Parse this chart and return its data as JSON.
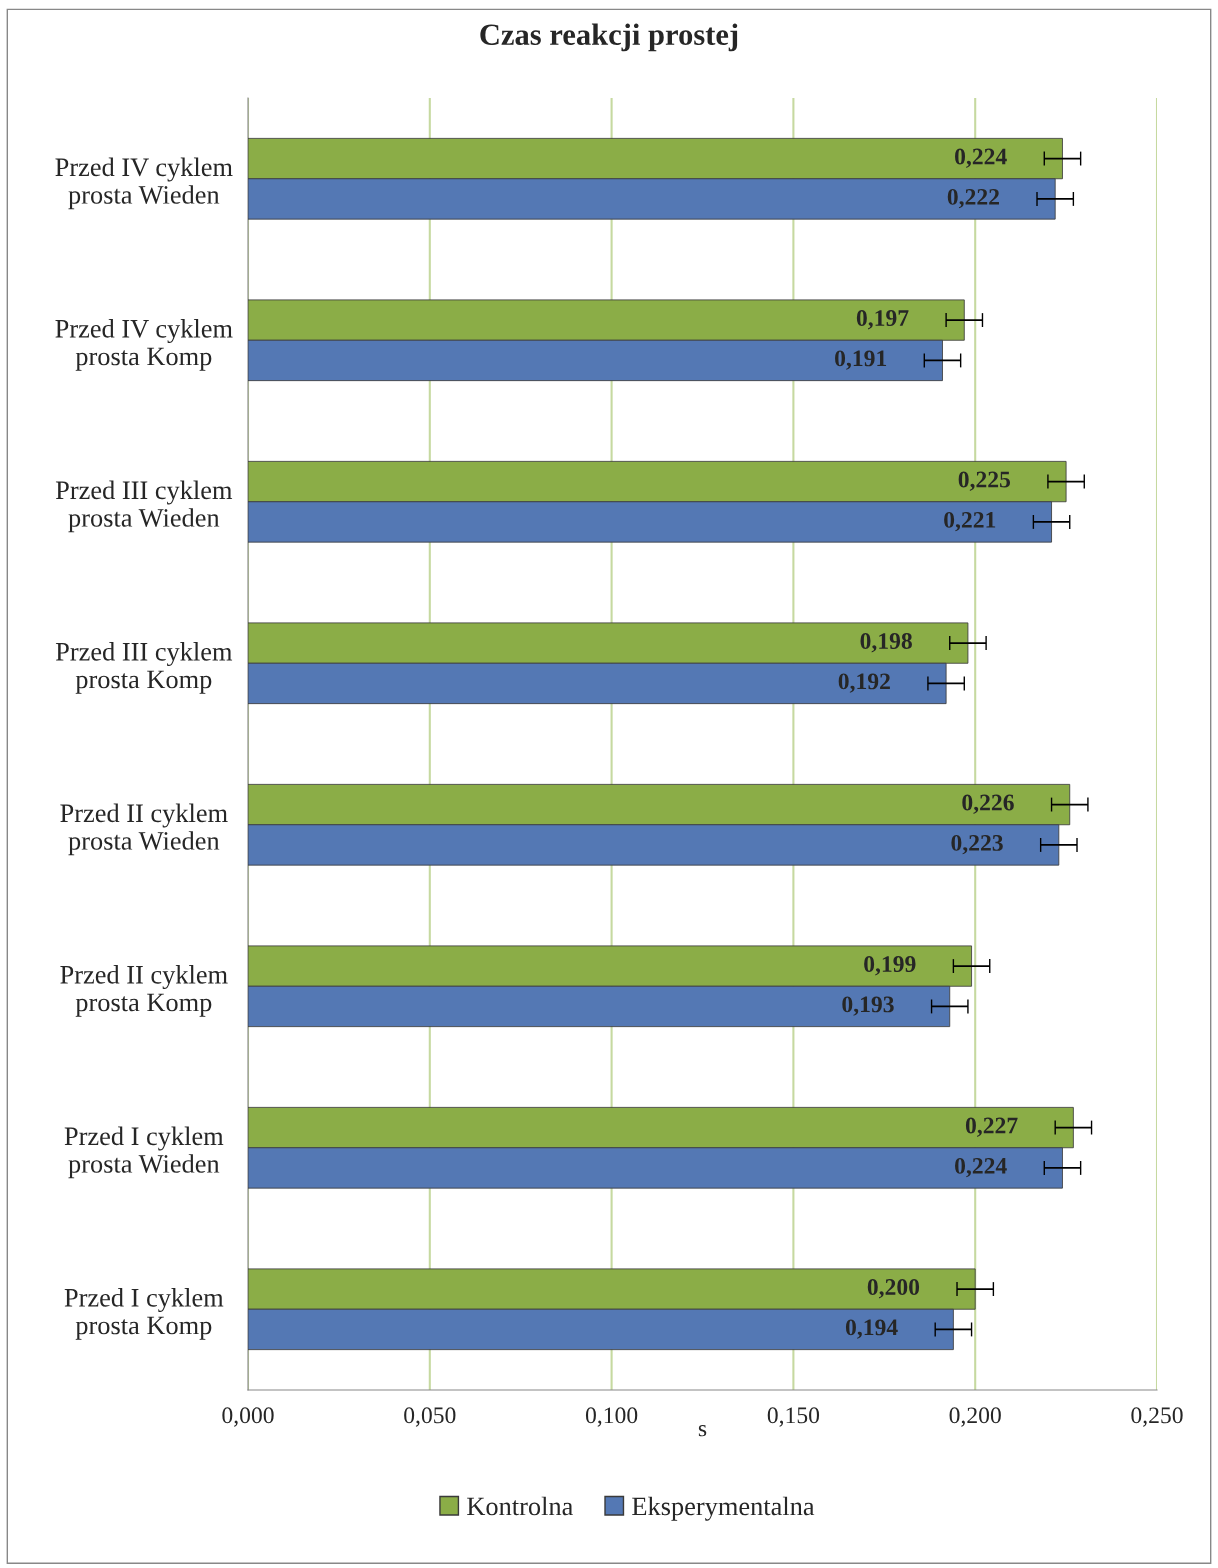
{
  "chart_data": {
    "type": "bar",
    "orientation": "horizontal",
    "title": "Czas reakcji prostej",
    "xlabel": "s",
    "categories": [
      "Przed IV cyklem\nprosta Wieden",
      "Przed IV cyklem\nprosta Komp",
      "Przed III cyklem\nprosta Wieden",
      "Przed III cyklem\nprosta Komp",
      "Przed II cyklem\nprosta Wieden",
      "Przed II cyklem\nprosta Komp",
      "Przed I cyklem\nprosta Wieden",
      "Przed I cyklem\nprosta Komp"
    ],
    "series": [
      {
        "name": "Kontrolna",
        "color": "#8bad47",
        "values": [
          0.224,
          0.197,
          0.225,
          0.198,
          0.226,
          0.199,
          0.227,
          0.2
        ],
        "errors": [
          0.005,
          0.005,
          0.005,
          0.005,
          0.005,
          0.005,
          0.005,
          0.005
        ],
        "value_labels": [
          "0,224",
          "0,197",
          "0,225",
          "0,198",
          "0,226",
          "0,199",
          "0,227",
          "0,200"
        ]
      },
      {
        "name": "Eksperymentalna",
        "color": "#5478b4",
        "values": [
          0.222,
          0.191,
          0.221,
          0.192,
          0.223,
          0.193,
          0.224,
          0.194
        ],
        "errors": [
          0.005,
          0.005,
          0.005,
          0.005,
          0.005,
          0.005,
          0.005,
          0.005
        ],
        "value_labels": [
          "0,222",
          "0,191",
          "0,221",
          "0,192",
          "0,223",
          "0,193",
          "0,224",
          "0,194"
        ]
      }
    ],
    "xlim": [
      0,
      0.25
    ],
    "xticks": [
      {
        "value": 0,
        "label": "0,000"
      },
      {
        "value": 0.05,
        "label": "0,050"
      },
      {
        "value": 0.1,
        "label": "0,100"
      },
      {
        "value": 0.15,
        "label": "0,150"
      },
      {
        "value": 0.2,
        "label": "0,200"
      },
      {
        "value": 0.25,
        "label": "0,250"
      }
    ],
    "grid": "x",
    "legend": "bottom"
  }
}
